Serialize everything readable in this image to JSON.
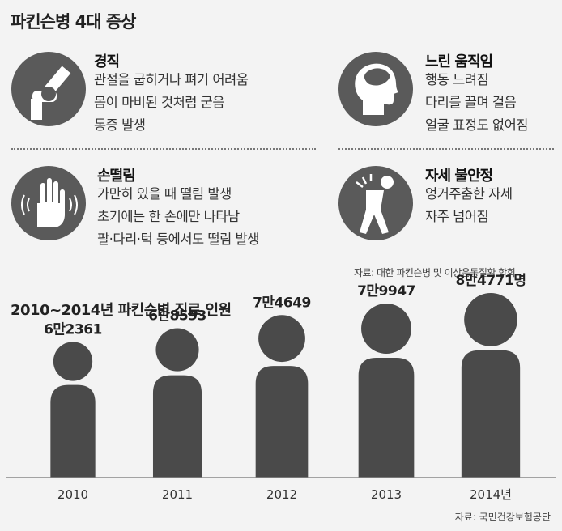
{
  "title": "파킨슨병 4대 증상",
  "symptoms": [
    {
      "icon": "knee-joint-icon",
      "heading": "경직",
      "lines": [
        "관절을 굽히거나 펴기 어려움",
        "몸이 마비된 것처럼 굳음",
        "통증 발생"
      ]
    },
    {
      "icon": "head-brain-icon",
      "heading": "느린 움직임",
      "lines": [
        "행동 느려짐",
        "다리를 끌며 걸음",
        "얼굴 표정도 없어짐"
      ]
    },
    {
      "icon": "trembling-hand-icon",
      "heading": "손떨림",
      "lines": [
        "가만히 있을 때 떨림 발생",
        "초기에는 한 손에만 나타남",
        "팔·다리·턱 등에서도 떨림 발생"
      ]
    },
    {
      "icon": "unstable-posture-icon",
      "heading": "자세 불안정",
      "lines": [
        "엉거주춤한 자세",
        "자주 넘어짐"
      ]
    }
  ],
  "source_top": "자료: 대한 파킨슨병 및 이상운동질환 학회",
  "chart_data": {
    "type": "bar",
    "title": "2010~2014년 파킨슨병 진료 인원",
    "categories": [
      "2010",
      "2011",
      "2012",
      "2013",
      "2014년"
    ],
    "values": [
      62361,
      68593,
      74649,
      79947,
      84771
    ],
    "value_labels": [
      "6만2361",
      "6만8593",
      "7만4649",
      "7만9947",
      "8만4771명"
    ],
    "ylim": [
      0,
      90000
    ],
    "mark": "person-silhouette",
    "bar_color": "#4a4a4a"
  },
  "source_bottom": "자료: 국민건강보험공단"
}
